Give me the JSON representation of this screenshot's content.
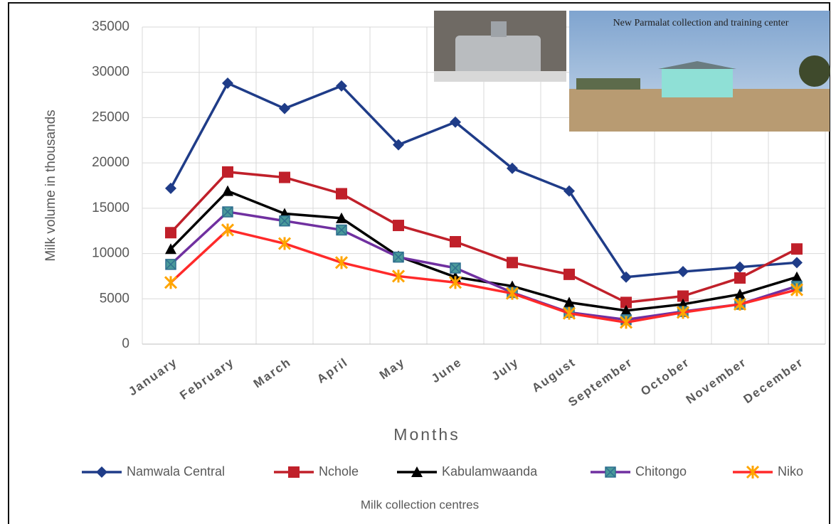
{
  "chart_data": {
    "type": "line",
    "annotation": "New Parmalat collection and training center",
    "y_label": "Milk volume in thousands",
    "x_label": "Months",
    "legend_title": "Milk collection centres",
    "categories": [
      "January",
      "February",
      "March",
      "April",
      "May",
      "June",
      "July",
      "August",
      "September",
      "October",
      "November",
      "December"
    ],
    "ylim": [
      0,
      35000
    ],
    "yticks": [
      0,
      5000,
      10000,
      15000,
      20000,
      25000,
      30000,
      35000
    ],
    "grid": true,
    "legend": "bottom",
    "series": [
      {
        "name": "Namwala Central",
        "color": "#1f3c88",
        "marker": "diamond",
        "values": [
          17200,
          28800,
          26000,
          28500,
          22000,
          24500,
          19400,
          16900,
          7400,
          8000,
          8500,
          9000
        ]
      },
      {
        "name": "Nchole",
        "color": "#c0202a",
        "marker": "square",
        "values": [
          12300,
          19000,
          18400,
          16600,
          13100,
          11300,
          9000,
          7700,
          4600,
          5300,
          7300,
          10500
        ]
      },
      {
        "name": "Kabulamwaanda",
        "color": "#000000",
        "marker": "triangle",
        "values": [
          10500,
          16900,
          14400,
          13900,
          9700,
          7400,
          6400,
          4600,
          3700,
          4400,
          5500,
          7400
        ]
      },
      {
        "name": "Chitongo",
        "color": "#7030a0",
        "marker": "xsquare",
        "values": [
          8800,
          14600,
          13600,
          12600,
          9600,
          8400,
          5700,
          3500,
          2700,
          3600,
          4400,
          6400
        ]
      },
      {
        "name": "Niko",
        "color": "#ff2a2a",
        "marker": "star",
        "values": [
          6800,
          12600,
          11100,
          9000,
          7500,
          6800,
          5600,
          3400,
          2400,
          3500,
          4400,
          6000
        ]
      }
    ]
  }
}
